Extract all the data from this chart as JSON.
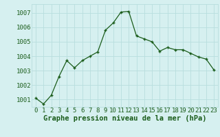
{
  "x": [
    0,
    1,
    2,
    3,
    4,
    5,
    6,
    7,
    8,
    9,
    10,
    11,
    12,
    13,
    14,
    15,
    16,
    17,
    18,
    19,
    20,
    21,
    22,
    23
  ],
  "y": [
    1001.1,
    1000.7,
    1001.3,
    1002.6,
    1003.7,
    1003.2,
    1003.7,
    1004.0,
    1004.3,
    1005.8,
    1006.3,
    1007.05,
    1007.1,
    1005.4,
    1005.2,
    1005.0,
    1004.35,
    1004.6,
    1004.45,
    1004.45,
    1004.2,
    1003.95,
    1003.8,
    1003.05
  ],
  "xlabel": "Graphe pression niveau de la mer (hPa)",
  "ylim": [
    1000.5,
    1007.6
  ],
  "xlim": [
    -0.5,
    23.5
  ],
  "yticks": [
    1001,
    1002,
    1003,
    1004,
    1005,
    1006,
    1007
  ],
  "xticks": [
    0,
    1,
    2,
    3,
    4,
    5,
    6,
    7,
    8,
    9,
    10,
    11,
    12,
    13,
    14,
    15,
    16,
    17,
    18,
    19,
    20,
    21,
    22,
    23
  ],
  "line_color": "#1a5c1a",
  "bg_color": "#d6f0f0",
  "grid_color": "#b8dede",
  "label_color": "#1a5c1a",
  "tick_fontsize": 6.5,
  "xlabel_fontsize": 7.5
}
